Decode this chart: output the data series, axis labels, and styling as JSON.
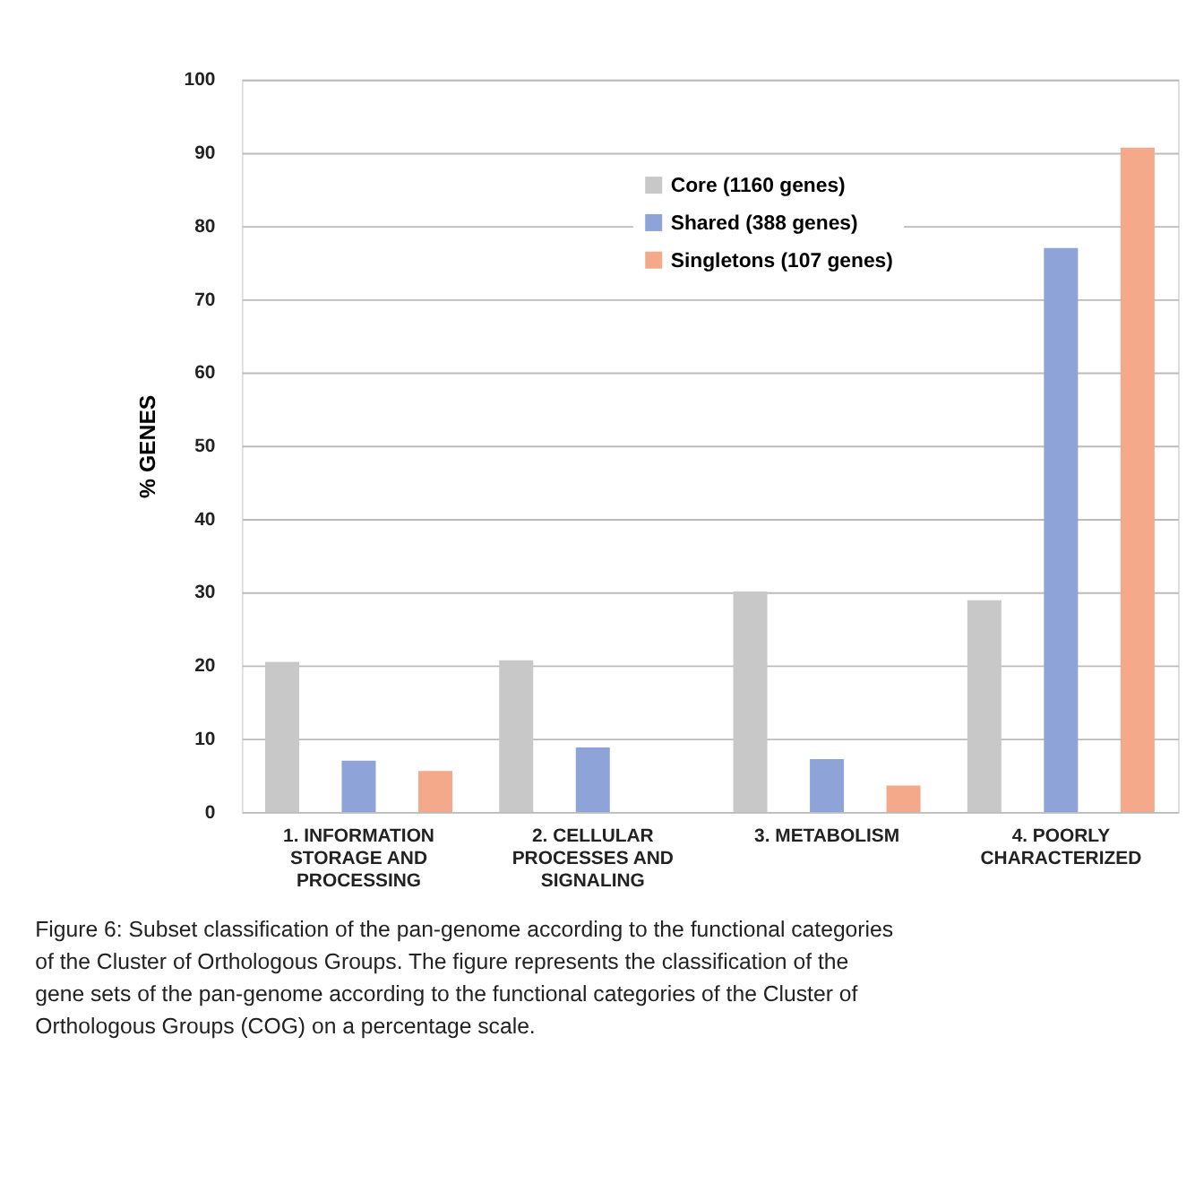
{
  "chart_data": {
    "type": "bar",
    "categories": [
      "1. INFORMATION STORAGE AND PROCESSING",
      "2. CELLULAR PROCESSES AND SIGNALING",
      "3. METABOLISM",
      "4. POORLY CHARACTERIZED"
    ],
    "series": [
      {
        "name": "Core (1160 genes)",
        "color": "#c8c8c8",
        "values": [
          20.5,
          20.7,
          30.1,
          28.9
        ]
      },
      {
        "name": "Shared (388 genes)",
        "color": "#8ea3d8",
        "values": [
          7.0,
          8.8,
          7.2,
          77.0
        ]
      },
      {
        "name": "Singletons (107 genes)",
        "color": "#f4a98a",
        "values": [
          5.6,
          null,
          3.6,
          90.7
        ]
      }
    ],
    "ylabel": "% GENES",
    "ylim": [
      0,
      100
    ],
    "yticks": [
      0,
      10,
      20,
      30,
      40,
      50,
      60,
      70,
      80,
      90,
      100
    ],
    "grid": "y",
    "legend": "top",
    "annotations": [
      "Figure 6: Subset classification of the pan-genome according to the functional categories of the Cluster of Orthologous Groups. The figure represents the classification of the gene sets of the pan-genome according to the functional categories of the Cluster of Orthologous Groups (COG) on a percentage scale."
    ]
  }
}
